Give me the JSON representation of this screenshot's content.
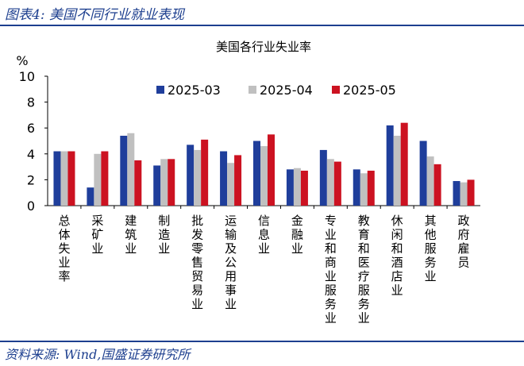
{
  "figure": {
    "title": "图表4:  美国不同行业就业表现",
    "source": "资料来源:  Wind,国盛证券研究所"
  },
  "chart_data": {
    "type": "bar",
    "title": "美国各行业失业率",
    "ylabel": "%",
    "ylim": [
      0,
      10
    ],
    "yticks": [
      0,
      2,
      4,
      6,
      8,
      10
    ],
    "legend_position": "top",
    "categories": [
      "总体失业率",
      "采矿业",
      "建筑业",
      "制造业",
      "批发零售贸易业",
      "运输及公用事业",
      "信息业",
      "金融业",
      "专业和商业服务业",
      "教育和医疗服务业",
      "休闲和酒店业",
      "其他服务业",
      "政府雇员"
    ],
    "series": [
      {
        "name": "2025-03",
        "color": "#1f3e9b",
        "values": [
          4.2,
          1.4,
          5.4,
          3.1,
          4.7,
          4.2,
          5.0,
          2.8,
          4.3,
          2.8,
          6.2,
          5.0,
          1.9
        ]
      },
      {
        "name": "2025-04",
        "color": "#c0c0c0",
        "values": [
          4.2,
          4.0,
          5.6,
          3.6,
          4.3,
          3.3,
          4.6,
          2.9,
          3.6,
          2.5,
          5.4,
          3.8,
          1.8
        ]
      },
      {
        "name": "2025-05",
        "color": "#cc1221",
        "values": [
          4.2,
          4.2,
          3.5,
          3.6,
          5.1,
          3.9,
          5.5,
          2.7,
          3.4,
          2.7,
          6.4,
          3.2,
          2.0
        ]
      }
    ]
  }
}
